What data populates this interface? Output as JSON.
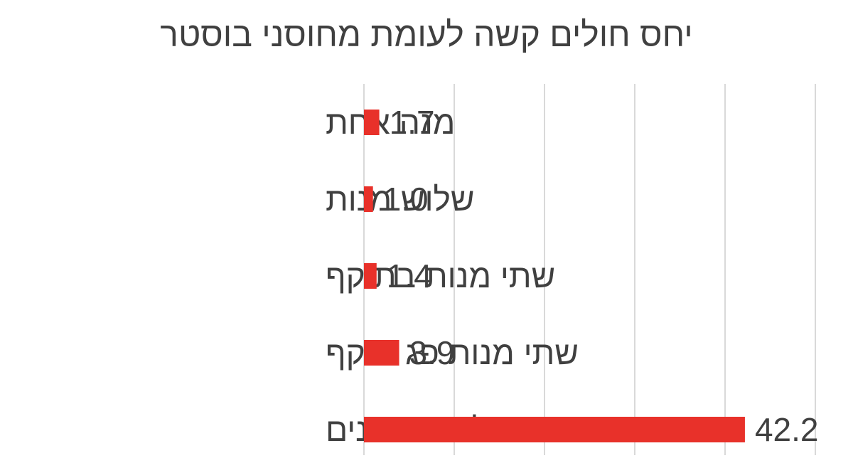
{
  "chart_data": {
    "type": "bar",
    "orientation": "horizontal",
    "title": "יחס חולים קשה לעומת מחוסני בוסטר",
    "categories": [
      "מנה אחת",
      "שלוש מנות",
      "שתי מנות בתוקף",
      "שתי מנות פג תוקף",
      "לא מחוסנים"
    ],
    "values": [
      1.7,
      1.0,
      1.4,
      3.9,
      42.2
    ],
    "value_labels": [
      "1.7",
      "1.0",
      "1.4",
      "3.9",
      "42.2"
    ],
    "xlim": [
      0,
      50
    ],
    "grid": true,
    "legend": "none",
    "bar_color": "#e8312a"
  }
}
